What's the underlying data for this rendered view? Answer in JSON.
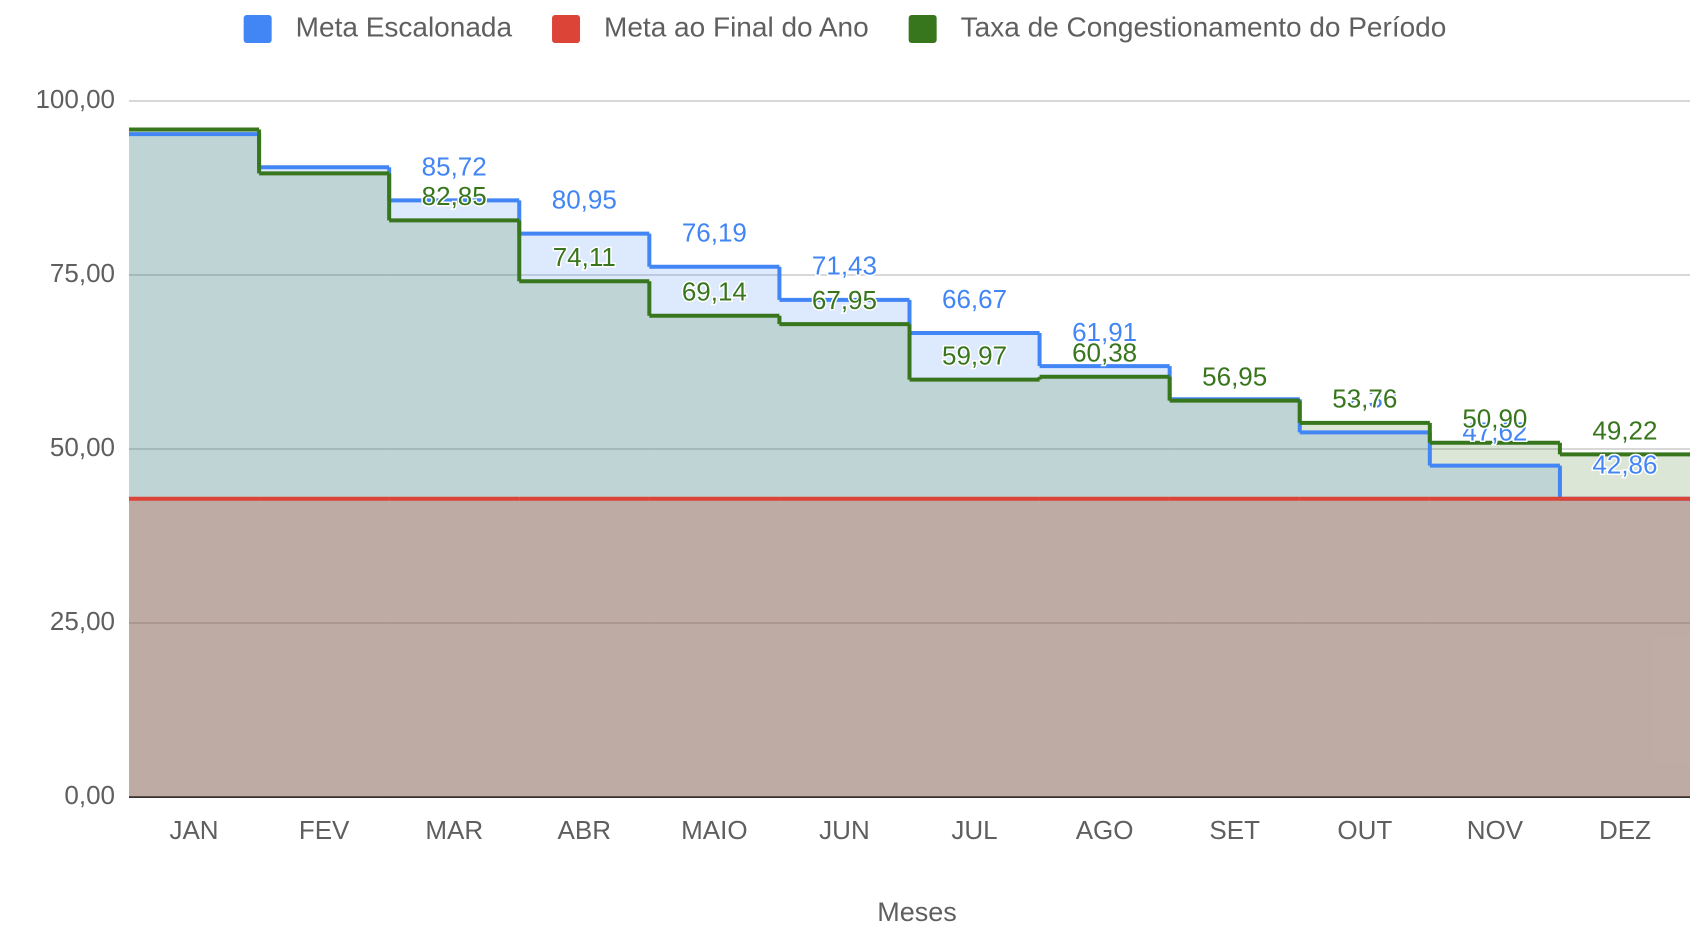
{
  "chart_data": {
    "type": "stepped-area",
    "x_label": "Meses",
    "categories": [
      "JAN",
      "FEV",
      "MAR",
      "ABR",
      "MAIO",
      "JUN",
      "JUL",
      "AGO",
      "SET",
      "OUT",
      "NOV",
      "DEZ"
    ],
    "series": [
      {
        "name": "Meta Escalonada",
        "color": "#4285f4",
        "values": [
          95.24,
          90.48,
          85.72,
          80.95,
          76.19,
          71.43,
          66.67,
          61.91,
          57.15,
          52.38,
          47.62,
          42.86
        ],
        "value_labels": [
          null,
          null,
          "85,72",
          "80,95",
          "76,19",
          "71,43",
          "66,67",
          "61,91",
          null,
          "52,38",
          "47,62",
          "42,86"
        ]
      },
      {
        "name": "Meta ao Final do Ano",
        "color": "#db4437",
        "values": [
          42.86,
          42.86,
          42.86,
          42.86,
          42.86,
          42.86,
          42.86,
          42.86,
          42.86,
          42.86,
          42.86,
          42.86
        ]
      },
      {
        "name": "Taxa de Congestionamento do Período",
        "color": "#38761d",
        "values": [
          95.9,
          89.6,
          82.85,
          74.11,
          69.14,
          67.95,
          59.97,
          60.38,
          56.95,
          53.76,
          50.9,
          49.22
        ],
        "value_labels": [
          null,
          null,
          "82,85",
          "74,11",
          "69,14",
          "67,95",
          "59,97",
          "60,38",
          "56,95",
          "53,76",
          "50,90",
          "49,22"
        ]
      }
    ],
    "ylim": [
      0,
      100
    ],
    "yticks": [
      {
        "value": 0,
        "label": "0,00"
      },
      {
        "value": 25,
        "label": "25,00"
      },
      {
        "value": 50,
        "label": "50,00"
      },
      {
        "value": 75,
        "label": "75,00"
      },
      {
        "value": 100,
        "label": "100,00"
      }
    ],
    "grid": true,
    "legend": "top"
  }
}
